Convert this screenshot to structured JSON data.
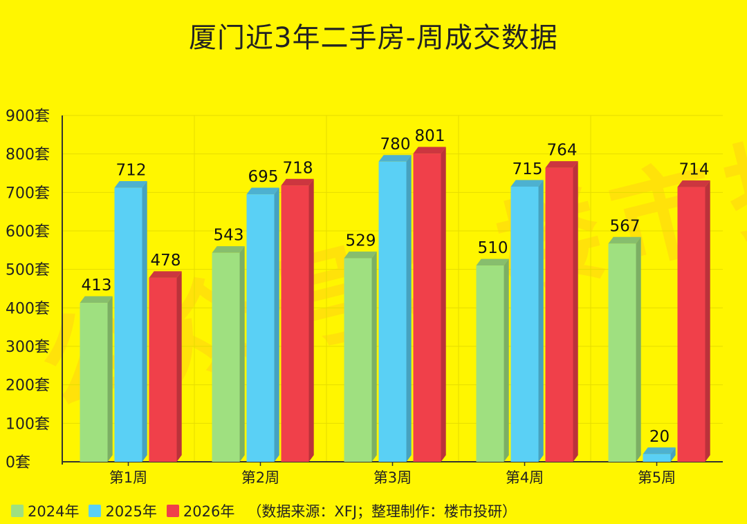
{
  "chart_data": {
    "type": "bar",
    "title": "厦门近3年二手房-周成交数据",
    "categories": [
      "第1周",
      "第2周",
      "第3周",
      "第4周",
      "第5周"
    ],
    "series": [
      {
        "name": "2024年",
        "color": "#9FE080",
        "values": [
          413,
          543,
          529,
          510,
          567
        ]
      },
      {
        "name": "2025年",
        "color": "#5AD0F5",
        "values": [
          712,
          695,
          780,
          715,
          20
        ]
      },
      {
        "name": "2026年",
        "color": "#F0404A",
        "values": [
          478,
          718,
          801,
          764,
          714
        ]
      }
    ],
    "y_tick_labels": [
      "0套",
      "100套",
      "200套",
      "300套",
      "400套",
      "500套",
      "600套",
      "700套",
      "800套",
      "900套"
    ],
    "ylim": [
      0,
      900
    ],
    "grid": true,
    "legend_position": "bottom-left",
    "legend_note": "（数据来源：XFJ；整理制作：楼市投研）",
    "watermark": "公众号：楼市投研"
  }
}
